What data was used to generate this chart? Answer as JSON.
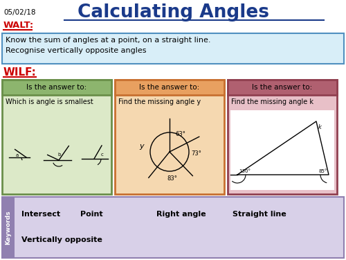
{
  "title": "Calculating Angles",
  "date": "05/02/18",
  "walt_label": "WALT:",
  "walt_text": "Know the sum of angles at a point, on a straight line.\nRecognise vertically opposite angles",
  "wilf_label": "WILF:",
  "box1_header": "Is the answer to:",
  "box1_content": "Which is angle is smallest",
  "box1_header_color": "#8db56e",
  "box1_border_color": "#6a8f4a",
  "box1_bg_color": "#dce9c8",
  "box2_header": "Is the answer to:",
  "box2_content": "Find the missing angle y",
  "box2_header_color": "#e8a060",
  "box2_border_color": "#c87030",
  "box2_bg_color": "#f5d8b0",
  "box3_header": "Is the answer to:",
  "box3_content": "Find the missing angle k",
  "box3_header_color": "#b06070",
  "box3_border_color": "#904050",
  "box3_bg_color": "#e8c0c8",
  "keywords_bg": "#d8d0e8",
  "keywords_side_bg": "#9080b0",
  "keywords_label": "Keywords",
  "keywords_row1": [
    "Intersect",
    "Point",
    "Right angle",
    "Straight line"
  ],
  "keywords_row2": [
    "Vertically opposite"
  ],
  "title_color": "#1a3a8a",
  "walt_color": "#cc0000",
  "wilf_color": "#cc0000",
  "date_color": "#000000",
  "walt_box_bg": "#d8eef8",
  "walt_box_border": "#5090c0",
  "bg_color": "#ffffff"
}
